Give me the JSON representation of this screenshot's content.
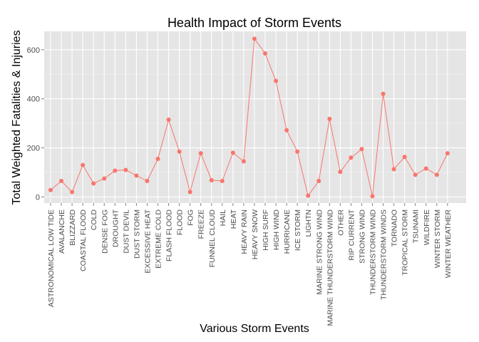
{
  "chart_data": {
    "type": "line",
    "title": "Health Impact of Storm Events",
    "xlabel": "Various Storm Events",
    "ylabel": "Total Weighted Fatalities & Injuries",
    "ylim": [
      -25,
      675
    ],
    "yticks": [
      0,
      200,
      400,
      600
    ],
    "grid": true,
    "legend": "none",
    "color": "#F8766D",
    "background": "#E5E5E5",
    "categories": [
      "ASTRONOMICAL LOW TIDE",
      "AVALANCHE",
      "BLIZZARD",
      "COASTAL FLOOD",
      "COLD",
      "DENSE FOG",
      "DROUGHT",
      "DUST DEVIL",
      "DUST STORM",
      "EXCESSIVE HEAT",
      "EXTREME COLD",
      "FLASH FLOOD",
      "FLOOD",
      "FOG",
      "FREEZE",
      "FUNNEL CLOUD",
      "HAIL",
      "HEAT",
      "HEAVY RAIN",
      "HEAVY SNOW",
      "HIGH SURF",
      "HIGH WIND",
      "HURRICANE",
      "ICE STORM",
      "LIGHTN",
      "MARINE STRONG WIND",
      "MARINE THUNDERSTORM WIND",
      "OTHER",
      "RIP CURRENT",
      "STRONG WIND",
      "THUNDERSTORM WIND",
      "THUNDERSTORM WINDS",
      "TORNADO",
      "TROPICAL STORM",
      "TSUNAMI",
      "WILDFIRE",
      "WINTER STORM",
      "WINTER WEATHER"
    ],
    "values": [
      28,
      65,
      20,
      130,
      55,
      75,
      107,
      110,
      87,
      65,
      155,
      315,
      185,
      20,
      178,
      68,
      65,
      180,
      145,
      645,
      585,
      473,
      272,
      185,
      5,
      65,
      318,
      102,
      160,
      195,
      3,
      420,
      113,
      163,
      90,
      116,
      90,
      178
    ]
  }
}
